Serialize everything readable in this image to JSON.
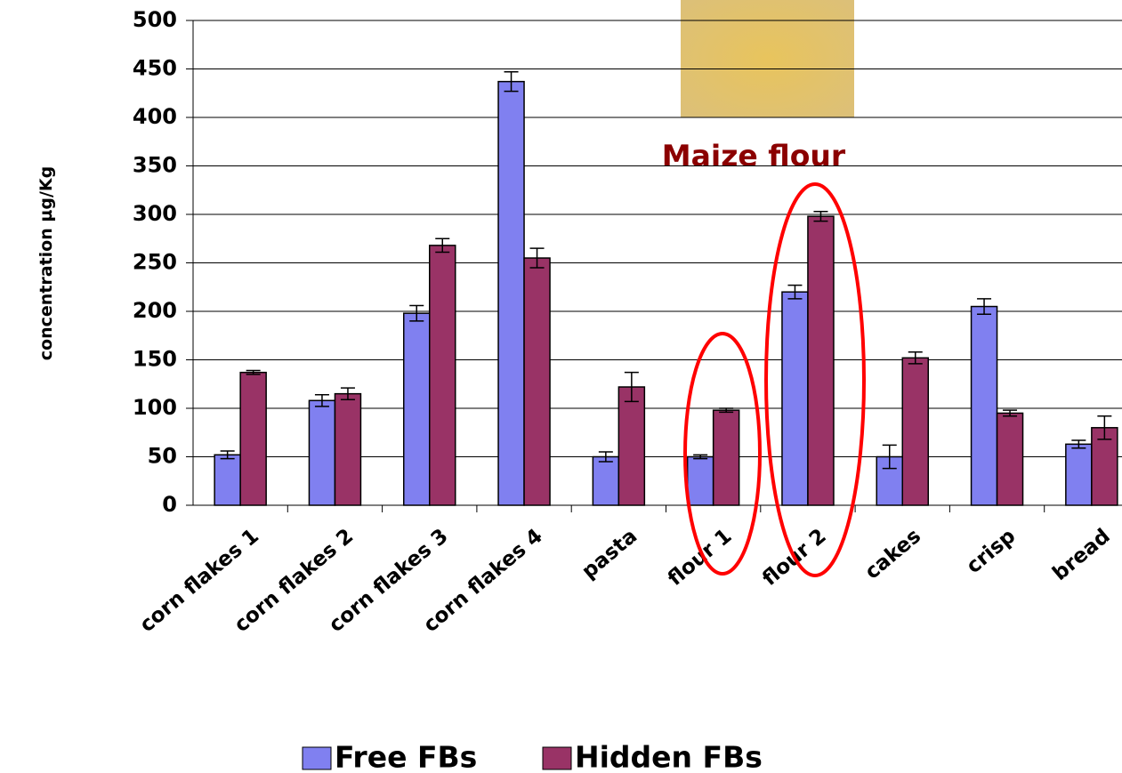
{
  "chart_data": {
    "type": "bar",
    "y_label": "concentration µg/Kg",
    "annotation": "Maize flour",
    "categories": [
      "corn flakes 1",
      "corn flakes 2",
      "corn flakes 3",
      "corn flakes 4",
      "pasta",
      "flour 1",
      "flour 2",
      "cakes",
      "crisp",
      "bread"
    ],
    "series": [
      {
        "name": "Free FBs",
        "color": "#8080f0",
        "values": [
          52,
          108,
          198,
          437,
          50,
          50,
          220,
          50,
          205,
          63
        ],
        "errors": [
          4,
          6,
          8,
          10,
          5,
          2,
          7,
          12,
          8,
          4
        ]
      },
      {
        "name": "Hidden FBs",
        "color": "#993366",
        "values": [
          137,
          115,
          268,
          255,
          122,
          98,
          298,
          152,
          95,
          80
        ],
        "errors": [
          2,
          6,
          7,
          10,
          15,
          2,
          5,
          6,
          3,
          12
        ]
      }
    ],
    "ylim": [
      0,
      500
    ],
    "yticks": [
      0,
      50,
      100,
      150,
      200,
      250,
      300,
      350,
      400,
      450,
      500
    ],
    "grid": true
  }
}
